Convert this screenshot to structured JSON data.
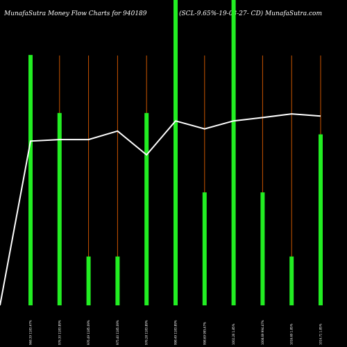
{
  "header": {
    "left_title": "MunafaSutra  Money Flow  Charts for 940189",
    "right_title": "(SCL-9.65%-19-03-27-  CD) MunafaSutra.com"
  },
  "colors": {
    "background": "#000000",
    "bar": "#22ee22",
    "stem": "#cc5500",
    "line": "#ffffff",
    "text": "#ffffff"
  },
  "chart_data": {
    "type": "bar",
    "categories": [
      "968.39 1183.47%",
      "976.30 1183.89%",
      "976.49 1185.09%",
      "975.40 1185.09%",
      "976.28 1183.89%",
      "998.49 1183.89%",
      "998.69 995.47%",
      "1002.26 1.85%",
      "1008.69 994.47%",
      "1016.69 1.85%",
      "1014.71 1.85%"
    ],
    "bars": [
      0.82,
      0.63,
      0.16,
      0.16,
      0.63,
      1.0,
      0.37,
      1.0,
      0.37,
      0.16,
      0.56
    ],
    "line": [
      0.0,
      0.538,
      0.543,
      0.543,
      0.571,
      0.493,
      0.604,
      0.578,
      0.604,
      0.615,
      0.627,
      0.62
    ],
    "grid": false,
    "legend": "none"
  }
}
